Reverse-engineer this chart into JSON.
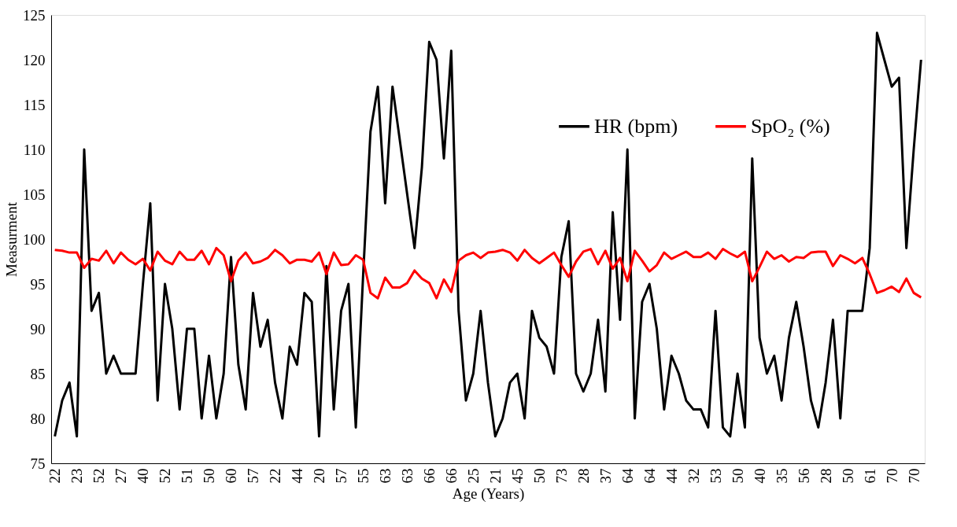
{
  "chart_data": {
    "type": "line",
    "xlabel": "Age (Years)",
    "ylabel": "Measurment",
    "categories": [
      "22",
      null,
      null,
      "23",
      null,
      null,
      "52",
      null,
      null,
      "27",
      null,
      null,
      "40",
      null,
      null,
      "52",
      null,
      null,
      "51",
      null,
      null,
      "50",
      null,
      null,
      "60",
      null,
      null,
      "57",
      null,
      null,
      "22",
      null,
      null,
      "44",
      null,
      null,
      "20",
      null,
      null,
      "57",
      null,
      null,
      "55",
      null,
      null,
      "63",
      null,
      null,
      "63",
      null,
      null,
      "66",
      null,
      null,
      "66",
      null,
      null,
      "25",
      null,
      null,
      "21",
      null,
      null,
      "45",
      null,
      null,
      "50",
      null,
      null,
      "73",
      null,
      null,
      "28",
      null,
      null,
      "37",
      null,
      null,
      "64",
      null,
      null,
      "64",
      null,
      null,
      "44",
      null,
      null,
      "32",
      null,
      null,
      "53",
      null,
      null,
      "50",
      null,
      null,
      "40",
      null,
      null,
      "35",
      null,
      null,
      "56",
      null,
      null,
      "28",
      null,
      null,
      "50",
      null,
      null,
      "61",
      null,
      null,
      "70",
      null,
      null,
      "70",
      null
    ],
    "series": [
      {
        "name": "HR (bpm)",
        "color": "#000000",
        "values": [
          78,
          82,
          84,
          78,
          110,
          92,
          94,
          85,
          87,
          85,
          85,
          85,
          95,
          104,
          82,
          95,
          90,
          81,
          90,
          90,
          80,
          87,
          80,
          85,
          98,
          86,
          81,
          94,
          88,
          91,
          84,
          80,
          88,
          86,
          94,
          93,
          78,
          97,
          81,
          92,
          95,
          79,
          96,
          112,
          117,
          104,
          117,
          111,
          105,
          99,
          108,
          122,
          120,
          109,
          121,
          92,
          82,
          85,
          92,
          84,
          78,
          80,
          84,
          85,
          80,
          92,
          89,
          88,
          85,
          98,
          102,
          85,
          83,
          85,
          91,
          83,
          103,
          91,
          110,
          80,
          93,
          95,
          90,
          81,
          87,
          85,
          82,
          81,
          81,
          79,
          92,
          79,
          78,
          85,
          79,
          109,
          89,
          85,
          87,
          82,
          89,
          93,
          88,
          82,
          79,
          84,
          91,
          80,
          92,
          92,
          92,
          99,
          123,
          120,
          117,
          118,
          99,
          110,
          120
        ]
      },
      {
        "name": "SpO₂ (%)",
        "color": "#ff0000",
        "values": [
          98.8,
          98.7,
          98.5,
          98.5,
          96.8,
          97.8,
          97.6,
          98.7,
          97.3,
          98.5,
          97.7,
          97.2,
          97.8,
          96.5,
          98.6,
          97.6,
          97.2,
          98.6,
          97.7,
          97.7,
          98.7,
          97.2,
          99.0,
          98.2,
          95.3,
          97.6,
          98.5,
          97.3,
          97.5,
          97.9,
          98.8,
          98.2,
          97.3,
          97.7,
          97.7,
          97.5,
          98.5,
          96.1,
          98.5,
          97.1,
          97.2,
          98.2,
          97.7,
          94.0,
          93.4,
          95.7,
          94.6,
          94.6,
          95.1,
          96.5,
          95.6,
          95.1,
          93.4,
          95.5,
          94.1,
          97.6,
          98.2,
          98.5,
          97.9,
          98.5,
          98.6,
          98.8,
          98.5,
          97.6,
          98.8,
          97.9,
          97.3,
          97.9,
          98.5,
          97.1,
          95.8,
          97.5,
          98.6,
          98.9,
          97.2,
          98.7,
          96.7,
          97.9,
          95.3,
          98.7,
          97.6,
          96.4,
          97.1,
          98.5,
          97.8,
          98.2,
          98.6,
          98.0,
          98.0,
          98.5,
          97.8,
          98.9,
          98.4,
          98.0,
          98.6,
          95.3,
          96.9,
          98.6,
          97.8,
          98.2,
          97.5,
          98.0,
          97.9,
          98.5,
          98.6,
          98.6,
          97.0,
          98.2,
          97.8,
          97.3,
          97.9,
          96.1,
          94.0,
          94.3,
          94.7,
          94.1,
          95.6,
          94.0,
          93.5
        ]
      }
    ],
    "ylim": [
      75,
      125
    ],
    "yticks": [
      75,
      80,
      85,
      90,
      95,
      100,
      105,
      110,
      115,
      120,
      125
    ],
    "grid": false,
    "legend": "top right",
    "line_style": "solid",
    "marker": "none"
  }
}
